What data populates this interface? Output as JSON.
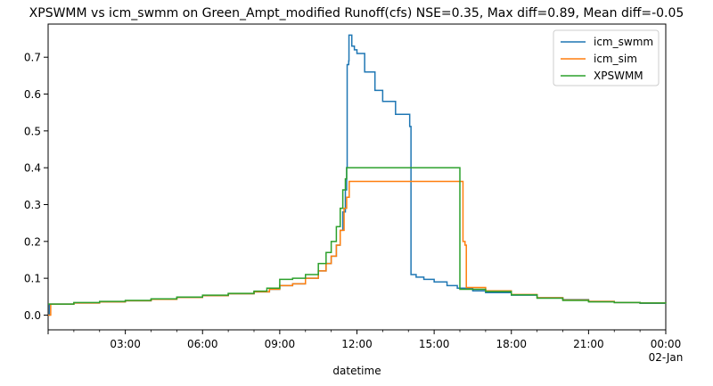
{
  "chart_data": {
    "type": "line",
    "title": "XPSWMM vs icm_swmm on Green_Ampt_modified Runoff(cfs) NSE=0.35, Max diff=0.89, Mean diff=-0.05",
    "xlabel": "datetime",
    "ylabel": "",
    "xlim_hours": [
      0,
      24
    ],
    "ylim": [
      -0.04,
      0.79
    ],
    "x_ticks": [
      {
        "value": 3,
        "label": "03:00",
        "sublabel": ""
      },
      {
        "value": 6,
        "label": "06:00",
        "sublabel": ""
      },
      {
        "value": 9,
        "label": "09:00",
        "sublabel": ""
      },
      {
        "value": 12,
        "label": "12:00",
        "sublabel": ""
      },
      {
        "value": 15,
        "label": "15:00",
        "sublabel": ""
      },
      {
        "value": 18,
        "label": "18:00",
        "sublabel": ""
      },
      {
        "value": 21,
        "label": "21:00",
        "sublabel": ""
      },
      {
        "value": 24,
        "label": "00:00",
        "sublabel": "02-Jan"
      }
    ],
    "y_ticks": [
      0.0,
      0.1,
      0.2,
      0.3,
      0.4,
      0.5,
      0.6,
      0.7
    ],
    "y_tick_labels": [
      "0.0",
      "0.1",
      "0.2",
      "0.3",
      "0.4",
      "0.5",
      "0.6",
      "0.7"
    ],
    "grid": false,
    "legend_position": "top-right",
    "series": [
      {
        "name": "icm_swmm",
        "color": "#1f77b4",
        "points": [
          [
            0.0,
            0.0
          ],
          [
            0.05,
            0.03
          ],
          [
            1,
            0.033
          ],
          [
            2,
            0.036
          ],
          [
            3,
            0.039
          ],
          [
            4,
            0.043
          ],
          [
            5,
            0.048
          ],
          [
            6,
            0.053
          ],
          [
            7,
            0.058
          ],
          [
            8,
            0.063
          ],
          [
            8.6,
            0.07
          ],
          [
            9,
            0.08
          ],
          [
            9.5,
            0.085
          ],
          [
            10,
            0.1
          ],
          [
            10.5,
            0.12
          ],
          [
            10.8,
            0.14
          ],
          [
            11,
            0.16
          ],
          [
            11.2,
            0.19
          ],
          [
            11.35,
            0.23
          ],
          [
            11.45,
            0.28
          ],
          [
            11.55,
            0.34
          ],
          [
            11.6,
            0.4
          ],
          [
            11.62,
            0.68
          ],
          [
            11.68,
            0.69
          ],
          [
            11.69,
            0.76
          ],
          [
            11.8,
            0.73
          ],
          [
            11.9,
            0.72
          ],
          [
            12.0,
            0.71
          ],
          [
            12.3,
            0.66
          ],
          [
            12.7,
            0.61
          ],
          [
            13.0,
            0.58
          ],
          [
            13.5,
            0.545
          ],
          [
            14.05,
            0.512
          ],
          [
            14.1,
            0.11
          ],
          [
            14.3,
            0.103
          ],
          [
            14.6,
            0.097
          ],
          [
            15,
            0.09
          ],
          [
            15.5,
            0.08
          ],
          [
            15.9,
            0.073
          ],
          [
            16.5,
            0.066
          ],
          [
            17,
            0.061
          ],
          [
            18,
            0.054
          ],
          [
            19,
            0.047
          ],
          [
            20,
            0.042
          ],
          [
            21,
            0.037
          ],
          [
            22,
            0.034
          ],
          [
            23,
            0.032
          ],
          [
            24,
            0.031
          ]
        ]
      },
      {
        "name": "icm_sim",
        "color": "#ff7f0e",
        "points": [
          [
            0.0,
            0.0
          ],
          [
            0.1,
            0.03
          ],
          [
            1,
            0.033
          ],
          [
            2,
            0.036
          ],
          [
            3,
            0.039
          ],
          [
            4,
            0.043
          ],
          [
            5,
            0.048
          ],
          [
            6,
            0.053
          ],
          [
            7,
            0.058
          ],
          [
            8,
            0.063
          ],
          [
            8.6,
            0.07
          ],
          [
            9,
            0.08
          ],
          [
            9.5,
            0.085
          ],
          [
            10,
            0.1
          ],
          [
            10.5,
            0.12
          ],
          [
            10.8,
            0.14
          ],
          [
            11,
            0.16
          ],
          [
            11.2,
            0.19
          ],
          [
            11.35,
            0.23
          ],
          [
            11.5,
            0.29
          ],
          [
            11.6,
            0.32
          ],
          [
            11.7,
            0.363
          ],
          [
            16.1,
            0.363
          ],
          [
            16.12,
            0.2
          ],
          [
            16.2,
            0.19
          ],
          [
            16.25,
            0.075
          ],
          [
            17,
            0.066
          ],
          [
            18,
            0.056
          ],
          [
            19,
            0.047
          ],
          [
            20,
            0.041
          ],
          [
            21,
            0.037
          ],
          [
            22,
            0.034
          ],
          [
            23,
            0.033
          ],
          [
            24,
            0.032
          ]
        ]
      },
      {
        "name": "XPSWMM",
        "color": "#2ca02c",
        "points": [
          [
            0.0,
            0.03
          ],
          [
            1,
            0.034
          ],
          [
            2,
            0.037
          ],
          [
            3,
            0.04
          ],
          [
            4,
            0.044
          ],
          [
            5,
            0.049
          ],
          [
            6,
            0.054
          ],
          [
            7,
            0.059
          ],
          [
            8,
            0.065
          ],
          [
            8.5,
            0.073
          ],
          [
            9,
            0.097
          ],
          [
            9.5,
            0.1
          ],
          [
            10,
            0.11
          ],
          [
            10.5,
            0.14
          ],
          [
            10.8,
            0.17
          ],
          [
            11,
            0.2
          ],
          [
            11.2,
            0.24
          ],
          [
            11.35,
            0.29
          ],
          [
            11.45,
            0.34
          ],
          [
            11.55,
            0.37
          ],
          [
            11.6,
            0.4
          ],
          [
            15.95,
            0.4
          ],
          [
            16.0,
            0.07
          ],
          [
            17,
            0.064
          ],
          [
            18,
            0.055
          ],
          [
            19,
            0.046
          ],
          [
            20,
            0.04
          ],
          [
            21,
            0.036
          ],
          [
            22,
            0.034
          ],
          [
            23,
            0.033
          ],
          [
            24,
            0.032
          ]
        ]
      }
    ]
  }
}
